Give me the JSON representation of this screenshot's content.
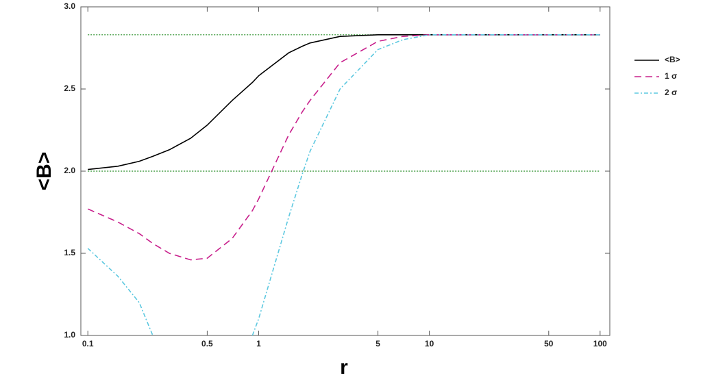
{
  "chart_data": {
    "type": "line",
    "x_label": "r",
    "y_label": "<B>",
    "xscale": "log",
    "x": [
      0.1,
      0.15,
      0.2,
      0.24,
      0.3,
      0.4,
      0.5,
      0.7,
      0.92,
      1,
      1.5,
      1.8,
      2,
      3,
      5,
      7,
      10,
      20,
      50,
      100
    ],
    "series": [
      {
        "name": "<B>",
        "color": "#000000",
        "dash": "solid",
        "values": [
          2.01,
          2.03,
          2.06,
          2.09,
          2.13,
          2.2,
          2.28,
          2.43,
          2.54,
          2.58,
          2.72,
          2.76,
          2.78,
          2.82,
          2.83,
          2.83,
          2.83,
          2.83,
          2.83,
          2.83
        ]
      },
      {
        "name": "1 σ",
        "color": "#c8208c",
        "dash": "dashed",
        "values": [
          1.77,
          1.69,
          1.62,
          1.56,
          1.5,
          1.46,
          1.47,
          1.59,
          1.76,
          1.83,
          2.22,
          2.36,
          2.43,
          2.66,
          2.79,
          2.82,
          2.83,
          2.83,
          2.83,
          2.83
        ]
      },
      {
        "name": "2 σ",
        "color": "#5cc8e0",
        "dash": "dashdot",
        "values": [
          1.53,
          1.36,
          1.2,
          1.0,
          null,
          null,
          null,
          null,
          1.0,
          1.1,
          1.72,
          1.98,
          2.12,
          2.5,
          2.74,
          2.8,
          2.83,
          2.83,
          2.83,
          2.83
        ]
      }
    ],
    "hlines": [
      2.0,
      2.83
    ],
    "hline_color": "#228b22",
    "xlim": [
      0.091,
      114
    ],
    "ylim": [
      1,
      3
    ],
    "xticks": [
      0.1,
      0.5,
      1,
      5,
      10,
      50,
      100
    ],
    "yticks": [
      {
        "value": 1,
        "label": "1.0"
      },
      {
        "value": 1.5,
        "label": "1.5"
      },
      {
        "value": 2,
        "label": "2.0"
      },
      {
        "value": 2.5,
        "label": "2.5"
      },
      {
        "value": 3,
        "label": "3.0"
      }
    ],
    "legend": "right"
  }
}
